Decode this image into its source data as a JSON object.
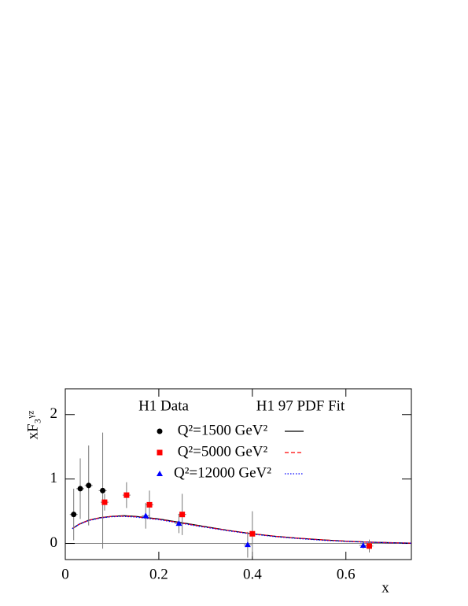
{
  "chart_data": {
    "type": "scatter",
    "ylabel": "xF₃ᵞᶻ",
    "xlabel": "x",
    "legend_titles": [
      "H1 Data",
      "H1 97 PDF Fit"
    ],
    "xlim": [
      0,
      0.74
    ],
    "ylim": [
      -0.25,
      2.4
    ],
    "xticks": [
      0,
      0.2,
      0.4,
      0.6
    ],
    "yticks": [
      0,
      1,
      2
    ],
    "series": [
      {
        "name": "Q²=1500 GeV²",
        "color": "#000000",
        "marker": "circle",
        "x": [
          0.018,
          0.032,
          0.05,
          0.08
        ],
        "values": [
          0.45,
          0.85,
          0.9,
          0.82
        ],
        "errors": [
          0.4,
          0.47,
          0.62,
          0.9
        ],
        "fit": {
          "dash": "none",
          "x": [
            0.015,
            0.03,
            0.05,
            0.075,
            0.1,
            0.125,
            0.15,
            0.2,
            0.25,
            0.3,
            0.35,
            0.4,
            0.45,
            0.5,
            0.55,
            0.6,
            0.65,
            0.7,
            0.74
          ],
          "values": [
            0.23,
            0.3,
            0.36,
            0.4,
            0.42,
            0.43,
            0.42,
            0.38,
            0.32,
            0.26,
            0.2,
            0.15,
            0.11,
            0.08,
            0.055,
            0.035,
            0.02,
            0.01,
            0.005
          ]
        }
      },
      {
        "name": "Q²=5000 GeV²",
        "color": "#ff0000",
        "marker": "square",
        "x": [
          0.084,
          0.131,
          0.18,
          0.25,
          0.4,
          0.65
        ],
        "values": [
          0.64,
          0.75,
          0.6,
          0.45,
          0.15,
          -0.04
        ],
        "errors": [
          0.13,
          0.2,
          0.22,
          0.32,
          0.35,
          0.1
        ],
        "fit": {
          "dash": "5,3",
          "x": [
            0.015,
            0.03,
            0.05,
            0.075,
            0.1,
            0.125,
            0.15,
            0.2,
            0.25,
            0.3,
            0.35,
            0.4,
            0.45,
            0.5,
            0.55,
            0.6,
            0.65,
            0.7,
            0.74
          ],
          "values": [
            0.23,
            0.3,
            0.36,
            0.4,
            0.42,
            0.425,
            0.415,
            0.375,
            0.315,
            0.255,
            0.2,
            0.15,
            0.11,
            0.08,
            0.055,
            0.035,
            0.02,
            0.01,
            0.005
          ]
        }
      },
      {
        "name": "Q²=12000 GeV²",
        "color": "#0000ff",
        "marker": "triangle",
        "x": [
          0.172,
          0.243,
          0.39,
          0.637
        ],
        "values": [
          0.43,
          0.31,
          -0.02,
          -0.03
        ],
        "errors": [
          0.2,
          0.15,
          0.2,
          0.05
        ],
        "fit": {
          "dash": "1.5,2",
          "x": [
            0.015,
            0.03,
            0.05,
            0.075,
            0.1,
            0.125,
            0.15,
            0.2,
            0.25,
            0.3,
            0.35,
            0.4,
            0.45,
            0.5,
            0.55,
            0.6,
            0.65,
            0.7,
            0.74
          ],
          "values": [
            0.23,
            0.3,
            0.355,
            0.395,
            0.415,
            0.42,
            0.41,
            0.37,
            0.31,
            0.25,
            0.195,
            0.145,
            0.105,
            0.075,
            0.05,
            0.032,
            0.018,
            0.009,
            0.004
          ]
        }
      }
    ]
  }
}
